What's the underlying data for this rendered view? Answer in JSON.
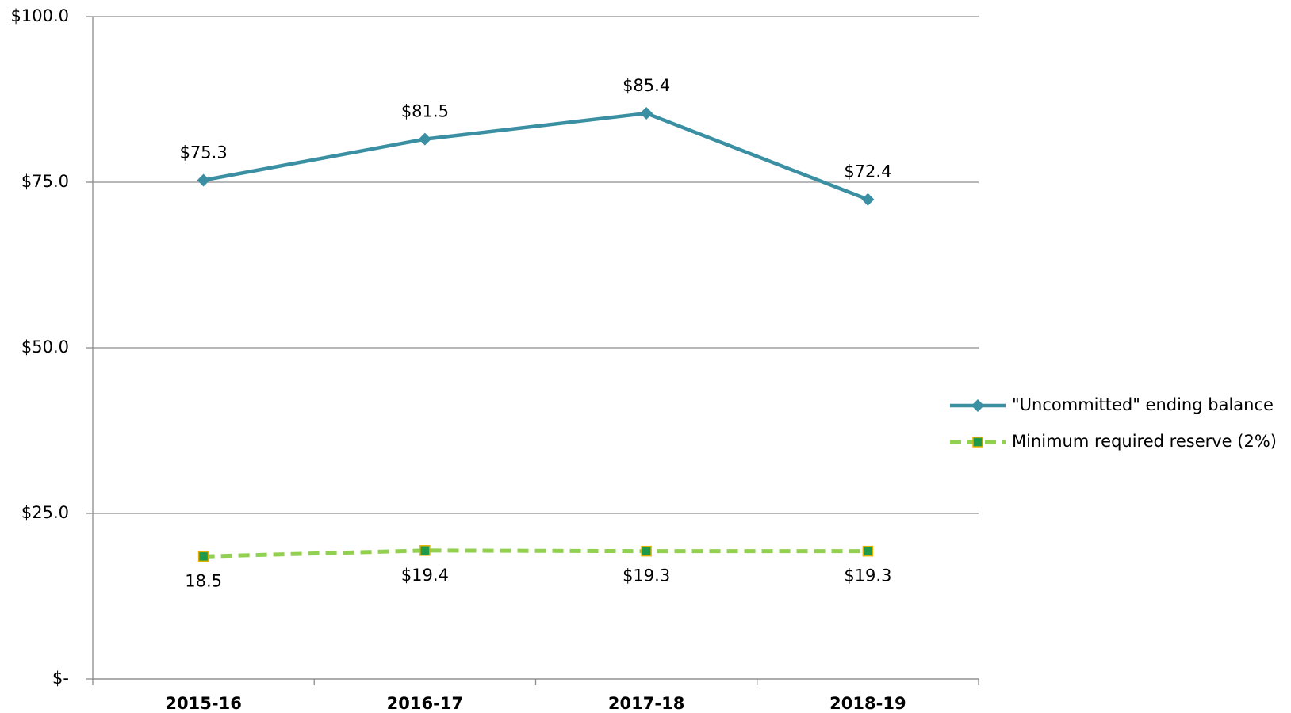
{
  "chart_data": {
    "type": "line",
    "categories": [
      "2015-16",
      "2016-17",
      "2017-18",
      "2018-19"
    ],
    "series": [
      {
        "name": "\"Uncommitted\" ending balance",
        "color": "#3a8fa3",
        "marker": "diamond",
        "dashed": false,
        "values": [
          75.3,
          81.5,
          85.4,
          72.4
        ],
        "value_labels": [
          "$75.3",
          "$81.5",
          "$85.4",
          "$72.4"
        ],
        "label_position": "above"
      },
      {
        "name": "Minimum required reserve (2%)",
        "color": "#92d050",
        "marker": "square",
        "marker_fill": "#1f9a4a",
        "marker_edge": "#e0b000",
        "dashed": true,
        "values": [
          18.5,
          19.4,
          19.3,
          19.3
        ],
        "value_labels": [
          "18.5",
          "$19.4",
          "$19.3",
          "$19.3"
        ],
        "label_position": "below"
      }
    ],
    "ylim": [
      0,
      100
    ],
    "yticks": [
      {
        "value": 0,
        "label": "$-"
      },
      {
        "value": 25,
        "label": "$25.0"
      },
      {
        "value": 50,
        "label": "$50.0"
      },
      {
        "value": 75,
        "label": "$75.0"
      },
      {
        "value": 100,
        "label": "$100.0"
      }
    ],
    "grid": true,
    "legend": "right"
  }
}
